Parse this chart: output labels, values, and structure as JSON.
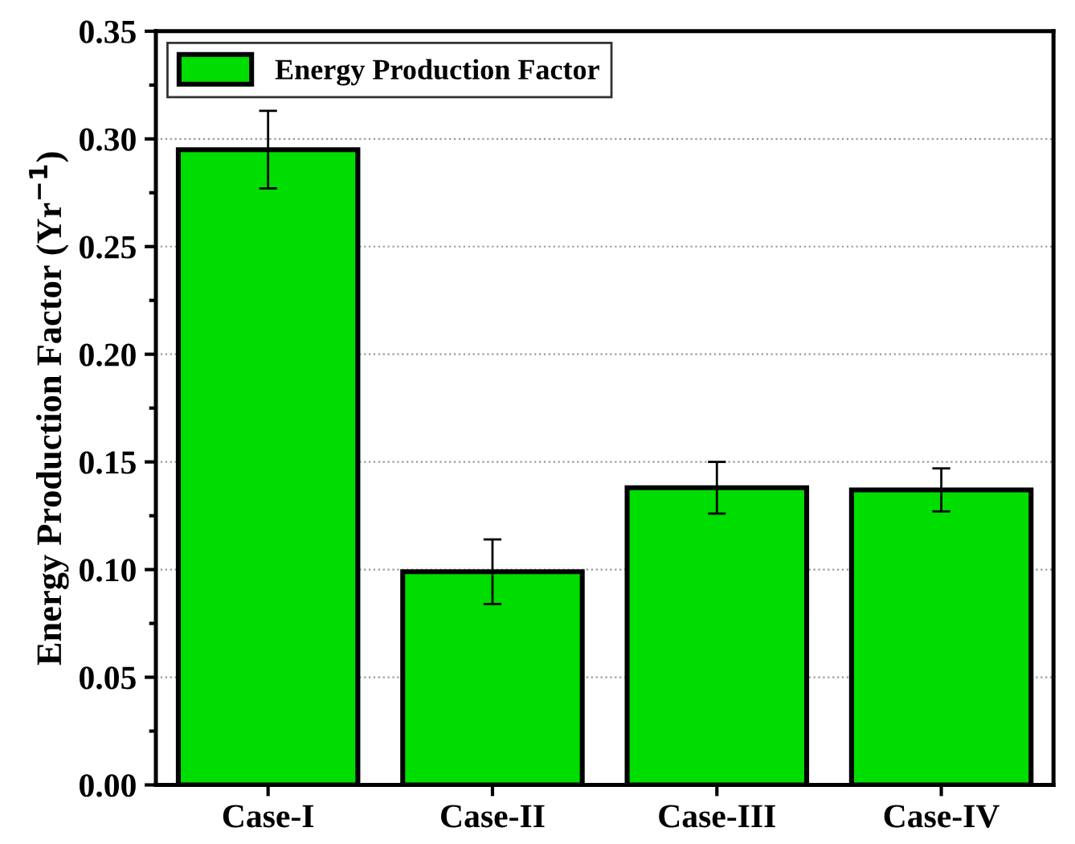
{
  "chart_data": {
    "type": "bar",
    "ylabel": "Energy Production Factor (Yr$^{−1}$)",
    "categories": [
      "Case-I",
      "Case-II",
      "Case-III",
      "Case-IV"
    ],
    "series": [
      {
        "name": "Energy Production Factor",
        "color": "#00dd00",
        "values": [
          0.295,
          0.099,
          0.138,
          0.137
        ],
        "errors": [
          [
            0.277,
            0.313
          ],
          [
            0.084,
            0.114
          ],
          [
            0.126,
            0.15
          ],
          [
            0.127,
            0.147
          ]
        ]
      }
    ],
    "ylim": [
      0,
      0.35
    ],
    "yticks": [
      {
        "value": 0,
        "label": "0.00"
      },
      0.05,
      {
        "value": 0.1,
        "label": "0.10"
      },
      0.15,
      {
        "value": 0.2,
        "label": "0.20"
      },
      0.25,
      {
        "value": 0.3,
        "label": "0.30"
      },
      0.35
    ],
    "grid": "y",
    "legend": "top left"
  }
}
